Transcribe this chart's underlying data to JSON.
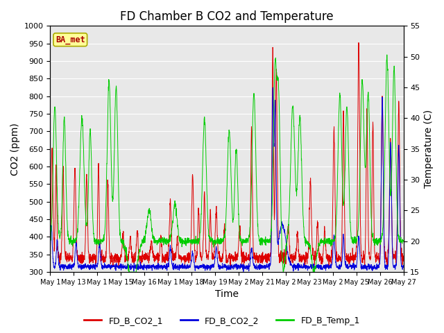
{
  "title": "FD Chamber B CO2 and Temperature",
  "xlabel": "Time",
  "ylabel_left": "CO2 (ppm)",
  "ylabel_right": "Temperature (C)",
  "ylim_left": [
    300,
    1000
  ],
  "ylim_right": [
    15,
    55
  ],
  "yticks_left": [
    300,
    350,
    400,
    450,
    500,
    550,
    600,
    650,
    700,
    750,
    800,
    850,
    900,
    950,
    1000
  ],
  "yticks_right": [
    15,
    20,
    25,
    30,
    35,
    40,
    45,
    50,
    55
  ],
  "xtick_labels": [
    "May 1",
    "May 13",
    "May 1",
    "May 15",
    "May 16",
    "May 1",
    "May 18",
    "May 19",
    "May 2",
    "May 21",
    "May 2",
    "May 23",
    "May 2",
    "May 25",
    "May 26",
    "May 27"
  ],
  "legend_entries": [
    "FD_B_CO2_1",
    "FD_B_CO2_2",
    "FD_B_Temp_1"
  ],
  "legend_colors": [
    "#dd0000",
    "#0000dd",
    "#00cc00"
  ],
  "line_colors": [
    "#dd0000",
    "#0000dd",
    "#00cc00"
  ],
  "annotation_text": "BA_met",
  "annotation_color": "#aa0000",
  "annotation_bg": "#ffff99",
  "annotation_border": "#aaaa00",
  "plot_bg": "#e8e8e8",
  "grid_color": "#ffffff",
  "title_fontsize": 12,
  "axis_fontsize": 10,
  "tick_fontsize": 8
}
